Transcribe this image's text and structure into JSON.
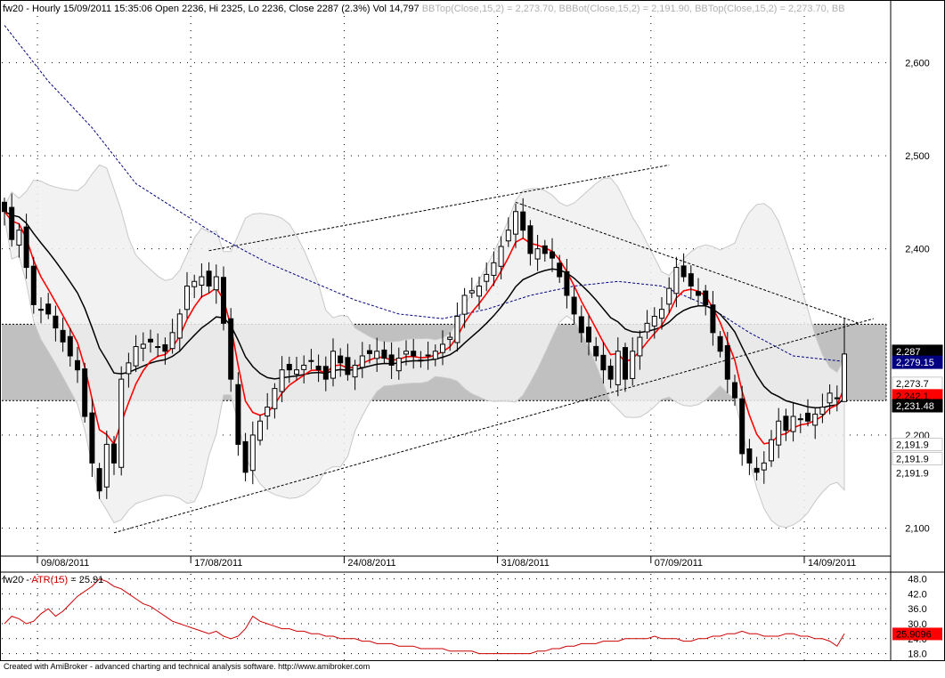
{
  "window": {
    "footer_text": "Created with AmiBroker - advanced charting and technical analysis software. http://www.amibroker.com"
  },
  "colors": {
    "background": "#ffffff",
    "band_fill": "#f0f0f0",
    "band_edge": "#c8c8c8",
    "zone_fill": "#c0c0c0",
    "candle": "#000000",
    "ema_fast": "#ff0000",
    "ema_slow": "#000000",
    "ma_long": "#000080",
    "atr_line": "#cc0000",
    "label_black": "#000000",
    "label_red": "#ff0000",
    "label_blue": "#000080",
    "label_gray": "#c8c8c8"
  },
  "price_header": {
    "symbol": "fw20",
    "main": " - Hourly 15/09/2011 15:35:06 Open 2236, Hi 2325, Lo 2236, Close 2287 (2.3%) Vol 14,797 ",
    "bb_parts": [
      "BBTop(Close,15,2) = 2,273.70, ",
      "BBBot(Close,15,2) = 2,191.90, ",
      "BBTop(Close,15,2) = 2,273.70, ",
      "BB"
    ]
  },
  "atr_header": {
    "symbol": "fw20",
    "dash": " - ",
    "indicator": "ATR(15)",
    "value_text": " = 25.91"
  },
  "chart_data": [
    {
      "type": "candlestick",
      "title": "fw20 - Hourly",
      "ylim": [
        2070,
        2650
      ],
      "y_ticks": [
        2100,
        2200,
        2300,
        2400,
        2500,
        2600
      ],
      "y_tick_labels": [
        "2,100",
        "2,200",
        "",
        "2,400",
        "2,500",
        "2,600"
      ],
      "x_tick_labels": [
        "09/08/2011",
        "17/08/2011",
        "24/08/2011",
        "31/08/2011",
        "07/09/2011",
        "14/09/2011"
      ],
      "x_tick_index": [
        5,
        26,
        47,
        68,
        89,
        110
      ],
      "grid": true,
      "support_resistance_zone": [
        2237,
        2319
      ],
      "last_bar": {
        "open": 2236,
        "high": 2325,
        "low": 2236,
        "close": 2287,
        "volume": 14797,
        "date": "15/09/2011 15:35:06"
      },
      "right_labels": [
        {
          "text": "2,287",
          "value": 2287,
          "style": "black"
        },
        {
          "text": "2,279.15",
          "value": 2279.15,
          "style": "blue"
        },
        {
          "text": "2,273.7",
          "value": 2273.7,
          "style": "gray"
        },
        {
          "text": "2,273.7",
          "value": 2273.7,
          "style": "gray"
        },
        {
          "text": "2,242.1",
          "value": 2242.1,
          "style": "red"
        },
        {
          "text": "2,231.48",
          "value": 2231.48,
          "style": "black"
        },
        {
          "text": "2,191.9",
          "value": 2191.9,
          "style": "gray"
        },
        {
          "text": "2,191.9",
          "value": 2191.9,
          "style": "gray"
        },
        {
          "text": "2,191.9",
          "value": 2191.9,
          "style": "plain"
        }
      ],
      "close_anchors": [
        [
          0,
          2440
        ],
        [
          1,
          2410
        ],
        [
          2,
          2420
        ],
        [
          4,
          2340
        ],
        [
          6,
          2330
        ],
        [
          8,
          2300
        ],
        [
          10,
          2270
        ],
        [
          12,
          2170
        ],
        [
          13,
          2140
        ],
        [
          14,
          2190
        ],
        [
          15,
          2170
        ],
        [
          16,
          2260
        ],
        [
          18,
          2295
        ],
        [
          20,
          2300
        ],
        [
          22,
          2290
        ],
        [
          24,
          2330
        ],
        [
          25,
          2360
        ],
        [
          27,
          2370
        ],
        [
          28,
          2360
        ],
        [
          29,
          2370
        ],
        [
          30,
          2320
        ],
        [
          31,
          2260
        ],
        [
          32,
          2190
        ],
        [
          33,
          2160
        ],
        [
          34,
          2200
        ],
        [
          36,
          2230
        ],
        [
          38,
          2270
        ],
        [
          40,
          2270
        ],
        [
          42,
          2280
        ],
        [
          44,
          2260
        ],
        [
          45,
          2290
        ],
        [
          47,
          2265
        ],
        [
          49,
          2285
        ],
        [
          51,
          2290
        ],
        [
          53,
          2275
        ],
        [
          55,
          2290
        ],
        [
          57,
          2280
        ],
        [
          59,
          2290
        ],
        [
          61,
          2305
        ],
        [
          63,
          2350
        ],
        [
          65,
          2360
        ],
        [
          67,
          2385
        ],
        [
          69,
          2420
        ],
        [
          70,
          2440
        ],
        [
          71,
          2420
        ],
        [
          72,
          2395
        ],
        [
          73,
          2400
        ],
        [
          75,
          2390
        ],
        [
          77,
          2350
        ],
        [
          79,
          2310
        ],
        [
          80,
          2300
        ],
        [
          82,
          2270
        ],
        [
          83,
          2260
        ],
        [
          84,
          2290
        ],
        [
          85,
          2260
        ],
        [
          86,
          2290
        ],
        [
          88,
          2320
        ],
        [
          90,
          2335
        ],
        [
          92,
          2380
        ],
        [
          93,
          2370
        ],
        [
          95,
          2350
        ],
        [
          96,
          2340
        ],
        [
          97,
          2310
        ],
        [
          98,
          2290
        ],
        [
          99,
          2260
        ],
        [
          100,
          2240
        ],
        [
          101,
          2180
        ],
        [
          102,
          2170
        ],
        [
          103,
          2160
        ],
        [
          104,
          2170
        ],
        [
          105,
          2195
        ],
        [
          106,
          2215
        ],
        [
          107,
          2205
        ],
        [
          108,
          2220
        ],
        [
          110,
          2215
        ],
        [
          112,
          2230
        ],
        [
          113,
          2245
        ],
        [
          114,
          2240
        ],
        [
          115,
          2287
        ]
      ],
      "ma_long_anchors": [
        [
          0,
          2640
        ],
        [
          6,
          2580
        ],
        [
          12,
          2530
        ],
        [
          18,
          2470
        ],
        [
          24,
          2440
        ],
        [
          30,
          2410
        ],
        [
          36,
          2385
        ],
        [
          42,
          2365
        ],
        [
          48,
          2345
        ],
        [
          54,
          2330
        ],
        [
          60,
          2325
        ],
        [
          66,
          2335
        ],
        [
          72,
          2350
        ],
        [
          78,
          2360
        ],
        [
          84,
          2365
        ],
        [
          90,
          2360
        ],
        [
          96,
          2340
        ],
        [
          102,
          2310
        ],
        [
          108,
          2285
        ],
        [
          115,
          2279
        ]
      ],
      "trend_lines": [
        {
          "name": "lower-support",
          "from": [
            15,
            2095
          ],
          "to": [
            119,
            2325
          ]
        },
        {
          "name": "upper-resistance",
          "from": [
            28,
            2398
          ],
          "to": [
            91,
            2490
          ]
        },
        {
          "name": "falling-resistance",
          "from": [
            70,
            2450
          ],
          "to": [
            117,
            2320
          ]
        }
      ]
    },
    {
      "type": "line",
      "title": "fw20 - ATR(15) = 25.91",
      "series": [
        {
          "name": "ATR(15)",
          "last": 25.9096
        }
      ],
      "ylim": [
        15,
        50
      ],
      "y_ticks": [
        18.0,
        24.0,
        30.0,
        36.0,
        42.0,
        48.0
      ],
      "y_tick_labels": [
        "18.0",
        "24.0",
        "30.0",
        "36.0",
        "42.0",
        "48.0"
      ],
      "last_label": "25.9096",
      "values": [
        30,
        33,
        32,
        30,
        31,
        34,
        36,
        33,
        35,
        38,
        41,
        43,
        45,
        48,
        47,
        45,
        44,
        42,
        40,
        38,
        37,
        35,
        33,
        31,
        30,
        29,
        28,
        27,
        26,
        27,
        25,
        24,
        25,
        28,
        33,
        31,
        30,
        29,
        28,
        28,
        27,
        27,
        26,
        26,
        25,
        25,
        24,
        24,
        24,
        23,
        23,
        22,
        22,
        22,
        21,
        21,
        21,
        20,
        20,
        20,
        20,
        19,
        19,
        19,
        19,
        18,
        18,
        18,
        18,
        18,
        18,
        18,
        18,
        19,
        19,
        20,
        20,
        21,
        21,
        22,
        22,
        22,
        23,
        23,
        23,
        24,
        24,
        24,
        24,
        25,
        24,
        24,
        24,
        23,
        23,
        24,
        24,
        25,
        25,
        26,
        26,
        27,
        26,
        26,
        25,
        25,
        25,
        26,
        26,
        25,
        25,
        24,
        24,
        23,
        21,
        26
      ]
    }
  ]
}
